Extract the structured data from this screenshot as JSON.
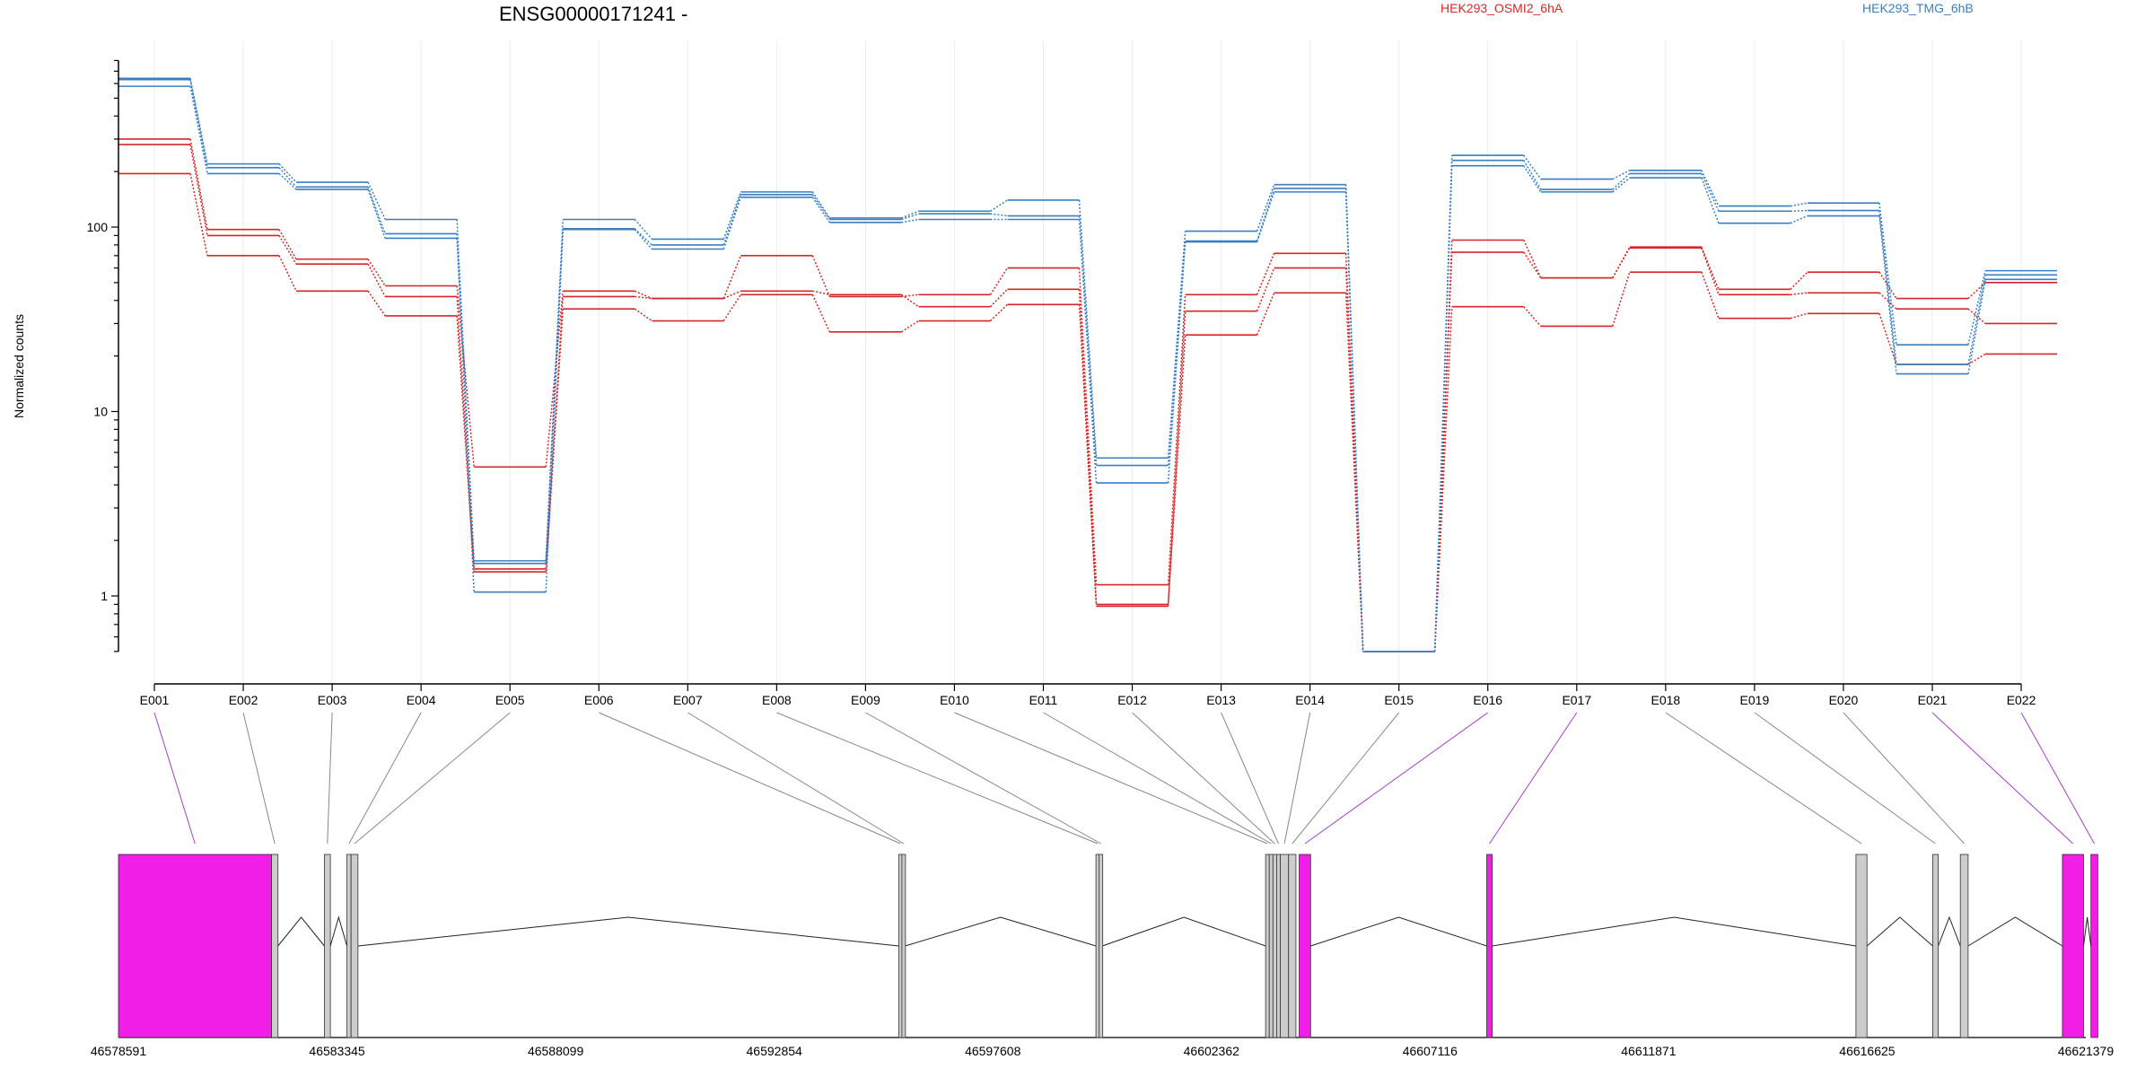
{
  "chart_data": {
    "type": "line",
    "title": "ENSG00000171241 -",
    "ylabel": "Normalized counts",
    "yscale": "log",
    "ylim": [
      0.5,
      800
    ],
    "yticks": [
      1,
      10,
      100
    ],
    "ytick_labels": [
      "1",
      "10",
      "100"
    ],
    "grid": "vertical",
    "legend_position": "top",
    "categories": [
      "E001",
      "E002",
      "E003",
      "E004",
      "E005",
      "E006",
      "E007",
      "E008",
      "E009",
      "E010",
      "E011",
      "E012",
      "E013",
      "E014",
      "E015",
      "E016",
      "E017",
      "E018",
      "E019",
      "E020",
      "E021",
      "E022"
    ],
    "groups": [
      {
        "name": "HEK293_OSMI2_6hA",
        "color": "#d62728"
      },
      {
        "name": "HEK293_TMG_6hB",
        "color": "#3a7fc1"
      }
    ],
    "series": [
      {
        "group": 0,
        "values": [
          300,
          97,
          67,
          48,
          5,
          45,
          41,
          70,
          42,
          43,
          60,
          1.15,
          43,
          72,
          0.5,
          85,
          53,
          78,
          46,
          57,
          41,
          50
        ]
      },
      {
        "group": 0,
        "values": [
          280,
          90,
          63,
          42,
          1.4,
          42,
          41,
          45,
          43,
          37,
          46,
          0.9,
          35,
          60,
          0.5,
          73,
          53,
          77,
          43,
          44,
          36,
          30
        ]
      },
      {
        "group": 0,
        "values": [
          195,
          70,
          45,
          33,
          1.35,
          36,
          31,
          43,
          27,
          31,
          38,
          0.88,
          26,
          44,
          0.5,
          37,
          29,
          57,
          32,
          34,
          18,
          20.5
        ]
      },
      {
        "group": 1,
        "values": [
          640,
          220,
          175,
          110,
          1.55,
          110,
          86,
          155,
          112,
          122,
          140,
          5.6,
          95,
          170,
          0.5,
          245,
          182,
          203,
          130,
          135,
          23,
          58
        ]
      },
      {
        "group": 1,
        "values": [
          630,
          210,
          165,
          92,
          1.5,
          98,
          80,
          150,
          110,
          118,
          115,
          5.1,
          84,
          162,
          0.5,
          230,
          160,
          195,
          122,
          123,
          18,
          55
        ]
      },
      {
        "group": 1,
        "values": [
          580,
          195,
          160,
          87,
          1.05,
          97,
          76,
          145,
          106,
          110,
          110,
          4.1,
          83,
          155,
          0.5,
          215,
          155,
          185,
          105,
          115,
          16,
          52
        ]
      }
    ],
    "gene_model": {
      "coordinate_labels": [
        "46578591",
        "46583345",
        "46588099",
        "46592854",
        "46597608",
        "46602362",
        "46607116",
        "46611871",
        "46616625",
        "46621379"
      ],
      "range": [
        46578591,
        46621379
      ],
      "exons": [
        {
          "id": "E001",
          "start": 46578591,
          "end": 46581920,
          "significant": true
        },
        {
          "id": "E002",
          "start": 46581920,
          "end": 46582060,
          "significant": false
        },
        {
          "id": "E003",
          "start": 46583070,
          "end": 46583200,
          "significant": false
        },
        {
          "id": "E004",
          "start": 46583560,
          "end": 46583650,
          "significant": false
        },
        {
          "id": "E005",
          "start": 46583650,
          "end": 46583800,
          "significant": false
        },
        {
          "id": "E006",
          "start": 46595560,
          "end": 46595630,
          "significant": false
        },
        {
          "id": "E007",
          "start": 46595630,
          "end": 46595700,
          "significant": false
        },
        {
          "id": "E008",
          "start": 46599850,
          "end": 46599920,
          "significant": false
        },
        {
          "id": "E009",
          "start": 46599920,
          "end": 46599990,
          "significant": false
        },
        {
          "id": "E010",
          "start": 46603540,
          "end": 46603620,
          "significant": false
        },
        {
          "id": "E011",
          "start": 46603620,
          "end": 46603700,
          "significant": false
        },
        {
          "id": "E012",
          "start": 46603700,
          "end": 46603780,
          "significant": false
        },
        {
          "id": "E013",
          "start": 46603780,
          "end": 46603860,
          "significant": false
        },
        {
          "id": "E014",
          "start": 46603860,
          "end": 46604040,
          "significant": false
        },
        {
          "id": "E015",
          "start": 46604040,
          "end": 46604200,
          "significant": false
        },
        {
          "id": "E016",
          "start": 46604270,
          "end": 46604520,
          "significant": true
        },
        {
          "id": "E017",
          "start": 46608350,
          "end": 46608470,
          "significant": true
        },
        {
          "id": "E018",
          "start": 46616380,
          "end": 46616620,
          "significant": false
        },
        {
          "id": "E019",
          "start": 46618050,
          "end": 46618170,
          "significant": false
        },
        {
          "id": "E020",
          "start": 46618650,
          "end": 46618820,
          "significant": false
        },
        {
          "id": "E021",
          "start": 46620870,
          "end": 46621330,
          "significant": true
        },
        {
          "id": "E022",
          "start": 46621490,
          "end": 46621640,
          "significant": true
        }
      ],
      "colors": {
        "significant": "#f01ee6",
        "normal": "#cccccc",
        "connector_significant": "#a040c0",
        "connector_normal": "#888888"
      }
    }
  }
}
